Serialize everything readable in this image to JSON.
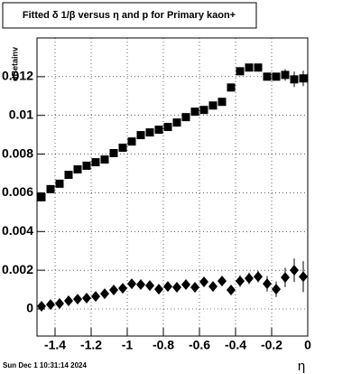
{
  "chart_data": {
    "type": "scatter",
    "title": "Fitted δ 1/β versus η and p for Primary kaon+",
    "x_label": "η",
    "y_label": "dBetainv",
    "footer": "Sun Dec  1 10:31:14 2024",
    "x": [
      -1.475,
      -1.425,
      -1.375,
      -1.325,
      -1.275,
      -1.225,
      -1.175,
      -1.125,
      -1.075,
      -1.025,
      -0.975,
      -0.925,
      -0.875,
      -0.825,
      -0.775,
      -0.725,
      -0.675,
      -0.625,
      -0.575,
      -0.525,
      -0.475,
      -0.425,
      -0.375,
      -0.325,
      -0.275,
      -0.225,
      -0.175,
      -0.125,
      -0.075,
      -0.025
    ],
    "series": [
      {
        "color": "#000000",
        "marker": "square",
        "values": [
          0.00577,
          0.00619,
          0.00647,
          0.00693,
          0.00721,
          0.0074,
          0.00758,
          0.00772,
          0.00805,
          0.00833,
          0.00865,
          0.00898,
          0.00912,
          0.00926,
          0.0094,
          0.00963,
          0.00991,
          0.01019,
          0.01028,
          0.01051,
          0.0107,
          0.01144,
          0.01228,
          0.01247,
          0.01247,
          0.012,
          0.012,
          0.01209,
          0.01186,
          0.01191
        ],
        "errors": [
          0.0001,
          0.0001,
          0.0001,
          0.0001,
          0.0001,
          0.0001,
          0.0001,
          0.0001,
          0.0001,
          0.0001,
          0.0001,
          0.0001,
          0.0001,
          0.0001,
          0.0001,
          0.0001,
          0.0001,
          0.0001,
          0.0001,
          0.0001,
          0.0001,
          0.0001,
          0.0002,
          0.0002,
          0.0002,
          0.0002,
          0.0002,
          0.0003,
          0.0004,
          0.0004
        ]
      },
      {
        "color": "#000000",
        "marker": "diamond",
        "values": [
          0.00014,
          0.00023,
          0.00028,
          0.00042,
          0.00051,
          0.00056,
          0.00065,
          0.00079,
          0.00098,
          0.00107,
          0.0013,
          0.00126,
          0.00121,
          0.00102,
          0.00116,
          0.00112,
          0.00126,
          0.00112,
          0.0014,
          0.00116,
          0.00144,
          0.00098,
          0.00144,
          0.00158,
          0.00167,
          0.0013,
          0.00102,
          0.00163,
          0.002,
          0.00167
        ],
        "errors": [
          0.0001,
          0.0001,
          0.0001,
          0.0001,
          0.0001,
          0.0001,
          0.0001,
          0.0001,
          0.0001,
          0.0001,
          0.0001,
          0.0001,
          0.0001,
          0.0001,
          0.0001,
          0.0001,
          0.0001,
          0.0001,
          0.0001,
          0.0001,
          0.0001,
          0.0002,
          0.0003,
          0.0003,
          0.0003,
          0.0004,
          0.0004,
          0.0005,
          0.0006,
          0.0008
        ]
      }
    ],
    "xlim": [
      -1.5,
      0
    ],
    "ylim": [
      -0.0014,
      0.014
    ],
    "xticks": [
      -1.4,
      -1.2,
      -1,
      -0.8,
      -0.6,
      -0.4,
      -0.2,
      0
    ],
    "yticks": [
      0,
      0.002,
      0.004,
      0.006,
      0.008,
      0.01,
      0.012
    ],
    "grid": true
  }
}
